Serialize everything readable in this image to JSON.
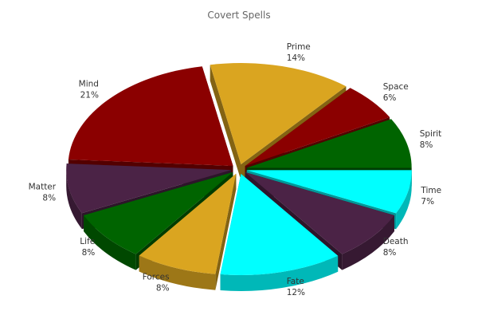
{
  "chart_data": {
    "type": "pie",
    "title": "Covert Spells",
    "categories": [
      "Time",
      "Death",
      "Fate",
      "Forces",
      "Life",
      "Matter",
      "Mind",
      "Prime",
      "Space",
      "Spirit"
    ],
    "values": [
      7,
      8,
      12,
      8,
      8,
      8,
      21,
      14,
      6,
      8
    ],
    "labels": [
      "7%",
      "8%",
      "12%",
      "8%",
      "8%",
      "8%",
      "21%",
      "14%",
      "6%",
      "8%"
    ],
    "colors": [
      "#00ffff",
      "#4b2346",
      "#00ffff",
      "#daa520",
      "#006400",
      "#4b2346",
      "#8b0000",
      "#daa520",
      "#8b0000",
      "#006400"
    ],
    "exploded": true,
    "three_d": true,
    "legend": "none"
  }
}
